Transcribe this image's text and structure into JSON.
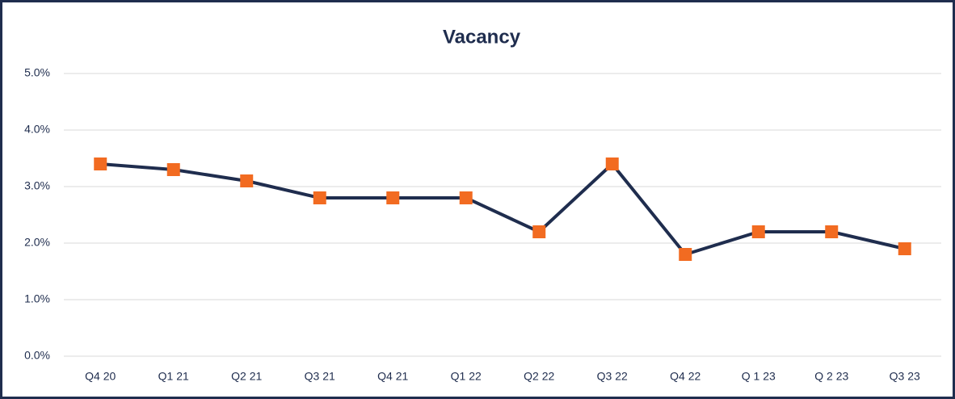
{
  "chart_data": {
    "type": "line",
    "title": "Vacancy",
    "categories": [
      "Q4 20",
      "Q1 21",
      "Q2 21",
      "Q3 21",
      "Q4 21",
      "Q1 22",
      "Q2 22",
      "Q3 22",
      "Q4 22",
      "Q 1 23",
      "Q 2 23",
      "Q3 23"
    ],
    "values": [
      3.4,
      3.3,
      3.1,
      2.8,
      2.8,
      2.8,
      2.2,
      3.4,
      1.8,
      2.2,
      2.2,
      1.9
    ],
    "color": "#1f2d4e",
    "marker_color": "#f26b21",
    "ylim": [
      0,
      5
    ],
    "yticks": [
      {
        "value": 0,
        "label": "0.0%"
      },
      {
        "value": 1,
        "label": "1.0%"
      },
      {
        "value": 2,
        "label": "2.0%"
      },
      {
        "value": 3,
        "label": "3.0%"
      },
      {
        "value": 4,
        "label": "4.0%"
      },
      {
        "value": 5,
        "label": "5.0%"
      }
    ],
    "grid": true
  }
}
